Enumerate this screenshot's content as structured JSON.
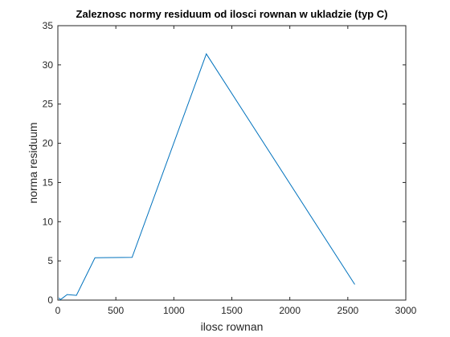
{
  "chart_data": {
    "type": "line",
    "title": "Zaleznosc normy residuum od ilosci rownan w ukladzie (typ C)",
    "xlabel": "ilosc rownan",
    "ylabel": "norma residuum",
    "xlim": [
      0,
      3000
    ],
    "ylim": [
      0,
      35
    ],
    "xticks": [
      0,
      500,
      1000,
      1500,
      2000,
      2500,
      3000
    ],
    "yticks": [
      0,
      5,
      10,
      15,
      20,
      25,
      30,
      35
    ],
    "grid": false,
    "line_color": "#0072BD",
    "series": [
      {
        "x": [
          10,
          20,
          40,
          80,
          160,
          320,
          640,
          1280,
          2560
        ],
        "y": [
          0.3,
          0.05,
          0.25,
          0.7,
          0.6,
          5.4,
          5.45,
          31.4,
          2.0
        ]
      }
    ]
  }
}
